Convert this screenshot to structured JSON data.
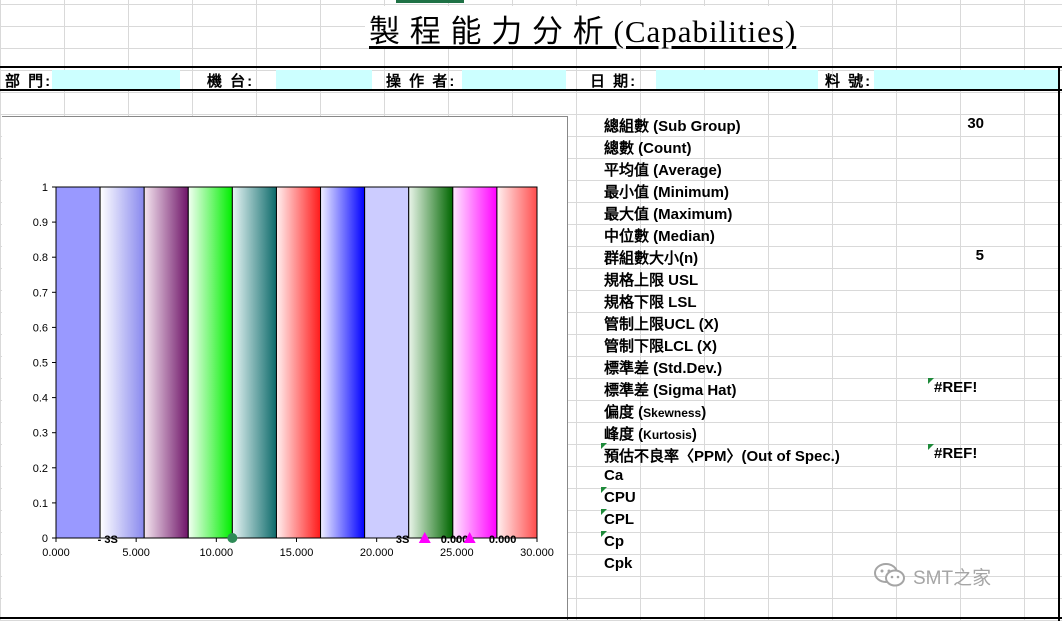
{
  "title": "製 程 能 力 分 析 (Capabilities)",
  "info_fields": [
    {
      "label": "部 門:",
      "value": ""
    },
    {
      "label": "機 台:",
      "value": ""
    },
    {
      "label": "操 作 者:",
      "value": ""
    },
    {
      "label": "日 期:",
      "value": ""
    },
    {
      "label": "料 號:",
      "value": ""
    }
  ],
  "stats": [
    {
      "label": "總組數 (Sub Group)",
      "value": "30"
    },
    {
      "label": "總數 (Count)",
      "value": ""
    },
    {
      "label": "平均值 (Average)",
      "value": ""
    },
    {
      "label": "最小值 (Minimum)",
      "value": ""
    },
    {
      "label": "最大值 (Maximum)",
      "value": ""
    },
    {
      "label": "中位數 (Median)",
      "value": ""
    },
    {
      "label": "群組數大小(n)",
      "value": "5"
    },
    {
      "label": "規格上限 USL",
      "value": ""
    },
    {
      "label": "規格下限 LSL",
      "value": ""
    },
    {
      "label": "管制上限UCL (X)",
      "value": ""
    },
    {
      "label": "管制下限LCL (X)",
      "value": ""
    },
    {
      "label": "標準差 (Std.Dev.)",
      "value": ""
    },
    {
      "label": "標準差 (Sigma Hat)",
      "value": "#REF!"
    },
    {
      "label_main": "偏度 (",
      "label_small": "Skewness",
      "label_end": ")",
      "value": ""
    },
    {
      "label_main": "峰度 (",
      "label_small": "Kurtosis",
      "label_end": ")",
      "value": ""
    },
    {
      "label": "預估不良率〈PPM〉(Out of Spec.)",
      "value": "#REF!"
    },
    {
      "label": "Ca",
      "value": ""
    },
    {
      "label": "CPU",
      "value": ""
    },
    {
      "label": "CPL",
      "value": ""
    },
    {
      "label": "Cp",
      "value": ""
    },
    {
      "label": "Cpk",
      "value": ""
    }
  ],
  "watermark": "SMT之家",
  "chart_data": {
    "type": "bar",
    "title": "",
    "xlabel": "",
    "ylabel": "",
    "xlim": [
      0,
      30
    ],
    "ylim": [
      0,
      1
    ],
    "x_ticks": [
      "0.000",
      "5.000",
      "10.000",
      "15.000",
      "20.000",
      "25.000",
      "30.000"
    ],
    "y_ticks": [
      "0",
      "0.1",
      "0.2",
      "0.3",
      "0.4",
      "0.5",
      "0.6",
      "0.7",
      "0.8",
      "0.9",
      "1"
    ],
    "bars": [
      {
        "x0": 0.0,
        "x1": 2.75,
        "value": 1,
        "colors": [
          "#9999ff",
          "#9999ff"
        ]
      },
      {
        "x0": 2.75,
        "x1": 5.5,
        "value": 1,
        "colors": [
          "#ffffff",
          "#8888ee"
        ]
      },
      {
        "x0": 5.5,
        "x1": 8.25,
        "value": 1,
        "colors": [
          "#f5e6f0",
          "#6e1468"
        ]
      },
      {
        "x0": 8.25,
        "x1": 11.0,
        "value": 1,
        "colors": [
          "#f2fff2",
          "#00ee00"
        ]
      },
      {
        "x0": 11.0,
        "x1": 13.75,
        "value": 1,
        "colors": [
          "#e8f5f5",
          "#0c6a6a"
        ]
      },
      {
        "x0": 13.75,
        "x1": 16.5,
        "value": 1,
        "colors": [
          "#fff0f0",
          "#ff1a1a"
        ]
      },
      {
        "x0": 16.5,
        "x1": 19.25,
        "value": 1,
        "colors": [
          "#f0f0ff",
          "#0000ff"
        ]
      },
      {
        "x0": 19.25,
        "x1": 22.0,
        "value": 1,
        "colors": [
          "#ccccff",
          "#ccccff"
        ]
      },
      {
        "x0": 22.0,
        "x1": 24.75,
        "value": 1,
        "colors": [
          "#eaf5ea",
          "#006600"
        ]
      },
      {
        "x0": 24.75,
        "x1": 27.5,
        "value": 1,
        "colors": [
          "#ffe8ff",
          "#ff00ff"
        ]
      },
      {
        "x0": 27.5,
        "x1": 30.0,
        "value": 1,
        "colors": [
          "#fff0f0",
          "#ff4d4d"
        ]
      }
    ],
    "markers": [
      {
        "x": 11.0,
        "shape": "circle",
        "color": "#2e8b57"
      },
      {
        "x": 23.0,
        "shape": "triangle",
        "color": "#ff00ff"
      },
      {
        "x": 25.8,
        "shape": "triangle",
        "color": "#ff00ff"
      }
    ],
    "annotations": [
      {
        "x": 2.6,
        "text": "- 3S"
      },
      {
        "x": 21.2,
        "text": "3S"
      },
      {
        "x": 24.0,
        "text": "0.000"
      },
      {
        "x": 27.0,
        "text": "0.000"
      }
    ]
  }
}
